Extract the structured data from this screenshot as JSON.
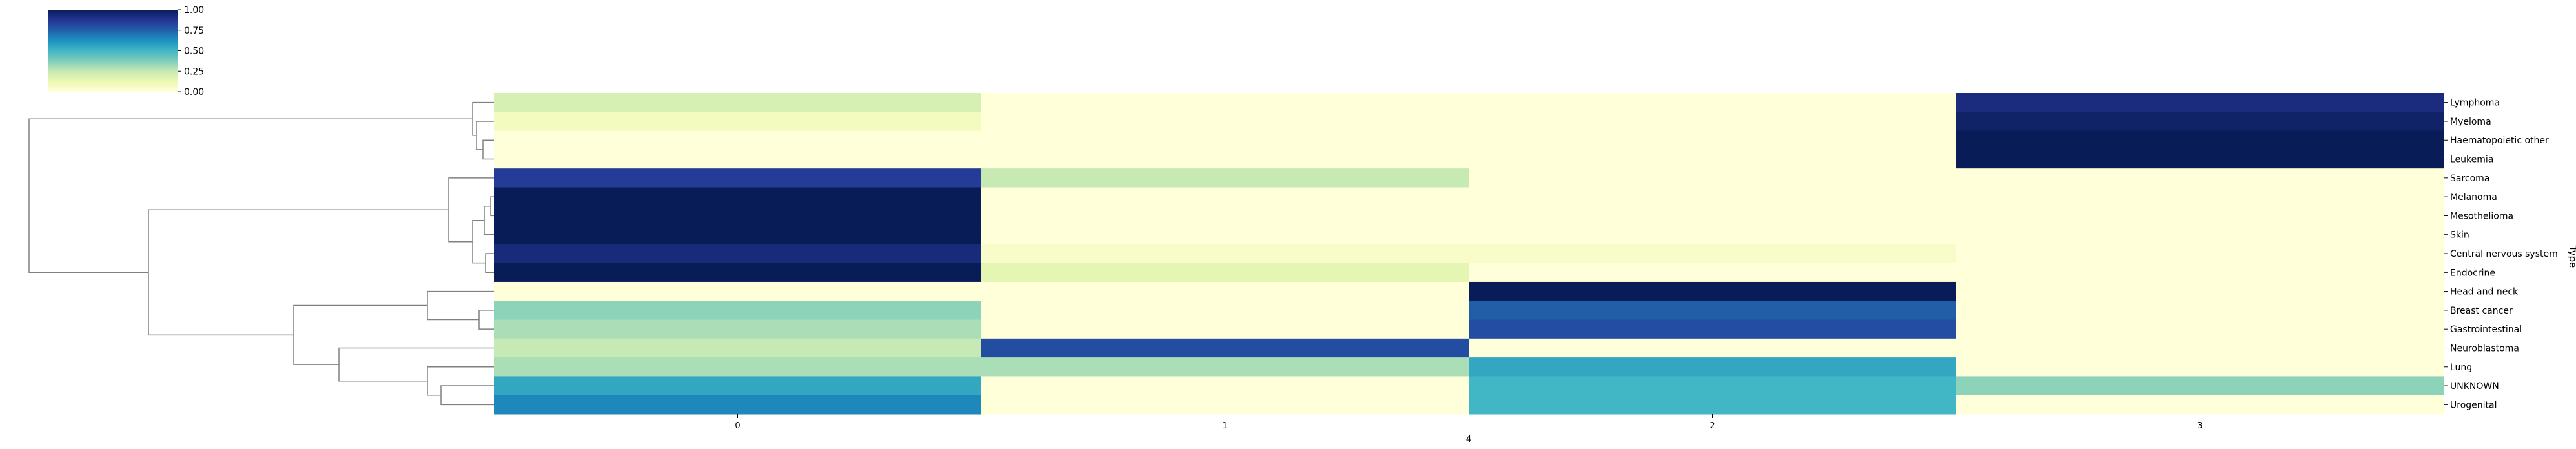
{
  "chart_data": {
    "type": "heatmap",
    "title": "",
    "xlabel": "4",
    "ylabel": "Type",
    "x": [
      "0",
      "1",
      "2",
      "3"
    ],
    "rows": [
      "Lymphoma",
      "Myeloma",
      "Haematopoietic other",
      "Leukemia",
      "Sarcoma",
      "Melanoma",
      "Mesothelioma",
      "Skin",
      "Central nervous system",
      "Endocrine",
      "Head and neck",
      "Breast cancer",
      "Gastrointestinal",
      "Neuroblastoma",
      "Lung",
      "UNKNOWN",
      "Urogenital"
    ],
    "values": [
      [
        0.2,
        0.0,
        0.0,
        0.92
      ],
      [
        0.08,
        0.0,
        0.0,
        0.97
      ],
      [
        0.0,
        0.0,
        0.0,
        1.0
      ],
      [
        0.0,
        0.0,
        0.0,
        1.0
      ],
      [
        0.85,
        0.25,
        0.0,
        0.0
      ],
      [
        1.0,
        0.0,
        0.0,
        0.0
      ],
      [
        1.0,
        0.0,
        0.0,
        0.0
      ],
      [
        1.0,
        0.0,
        0.0,
        0.0
      ],
      [
        0.93,
        0.05,
        0.05,
        0.0
      ],
      [
        1.0,
        0.15,
        0.0,
        0.0
      ],
      [
        0.0,
        0.0,
        1.0,
        0.0
      ],
      [
        0.35,
        0.0,
        0.75,
        0.0
      ],
      [
        0.3,
        0.0,
        0.8,
        0.0
      ],
      [
        0.25,
        0.8,
        0.0,
        0.0
      ],
      [
        0.3,
        0.3,
        0.55,
        0.0
      ],
      [
        0.55,
        0.0,
        0.5,
        0.35
      ],
      [
        0.65,
        0.0,
        0.5,
        0.0
      ]
    ],
    "colorbar": {
      "cmap": "YlGnBu",
      "range": [
        0,
        1
      ],
      "ticks": [
        "0.00",
        "0.25",
        "0.50",
        "0.75",
        "1.00"
      ]
    },
    "row_dendrogram": true
  }
}
